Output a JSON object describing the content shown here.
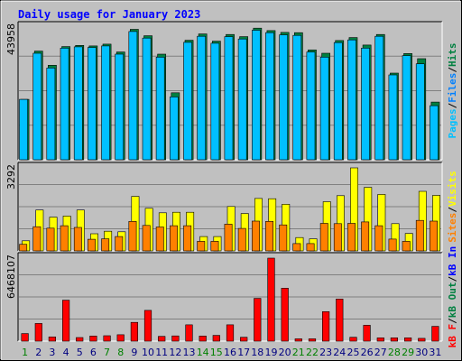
{
  "chart_data": {
    "type": "bar",
    "title": "Daily usage for January 2023",
    "categories": [
      "1",
      "2",
      "3",
      "4",
      "5",
      "6",
      "7",
      "8",
      "9",
      "10",
      "11",
      "12",
      "13",
      "14",
      "15",
      "16",
      "17",
      "18",
      "19",
      "20",
      "21",
      "22",
      "23",
      "24",
      "25",
      "26",
      "27",
      "28",
      "29",
      "30",
      "31"
    ],
    "weekend_days": [
      "1",
      "7",
      "8",
      "14",
      "15",
      "21",
      "22",
      "28",
      "29"
    ],
    "panels": [
      {
        "name": "hits-files-pages",
        "ymax_label": "43958",
        "ymax": 43958,
        "grid": true,
        "series": [
          {
            "name": "Hits",
            "color": "#008040",
            "values": [
              20000,
              36000,
              31300,
              37500,
              37900,
              37700,
              38300,
              35700,
              43200,
              41100,
              35000,
              22200,
              39600,
              41700,
              39300,
              41500,
              40800,
              43600,
              42800,
              42200,
              42100,
              36400,
              35300,
              39500,
              40500,
              38000,
              41500,
              28700,
              35200,
              33500,
              19100
            ]
          },
          {
            "name": "Files",
            "color": "#00C0FF",
            "values": [
              20000,
              35300,
              30400,
              37000,
              37400,
              37200,
              37700,
              35000,
              42500,
              40300,
              34000,
              20800,
              38900,
              40900,
              38600,
              40800,
              40000,
              42900,
              42100,
              41400,
              41200,
              35700,
              34000,
              38800,
              39700,
              37000,
              40900,
              28100,
              34500,
              31800,
              17900
            ]
          },
          {
            "name": "Pages",
            "color": "#00C0FF",
            "values": []
          }
        ]
      },
      {
        "name": "visits-sites",
        "ymax_label": "3292",
        "ymax": 3292,
        "grid": true,
        "series": [
          {
            "name": "Visits",
            "color": "#FFFF00",
            "values": [
              400,
              1620,
              1340,
              1380,
              1620,
              680,
              780,
              760,
              2160,
              1690,
              1510,
              1530,
              1530,
              570,
              570,
              1760,
              1480,
              2080,
              2070,
              1850,
              530,
              480,
              1950,
              2190,
              3292,
              2520,
              2240,
              1080,
              690,
              2360,
              2200
            ]
          },
          {
            "name": "Sites",
            "color": "#FF8000",
            "values": [
              260,
              960,
              900,
              1000,
              930,
              460,
              480,
              570,
              1170,
              1010,
              950,
              1000,
              1000,
              380,
              380,
              1060,
              890,
              1180,
              1170,
              1030,
              290,
              290,
              1090,
              1080,
              1090,
              1150,
              1000,
              470,
              380,
              1210,
              1180
            ]
          }
        ]
      },
      {
        "name": "kb",
        "ymax_label": "6468107",
        "ymax": 6468107,
        "grid": true,
        "series": [
          {
            "name": "KB In",
            "color": "#0000FF",
            "values": []
          },
          {
            "name": "KB Out",
            "color": "#008040",
            "values": []
          },
          {
            "name": "KB F",
            "color": "#FF0000",
            "values": [
              590000,
              1380000,
              330000,
              3190000,
              280000,
              400000,
              420000,
              500000,
              1460000,
              2400000,
              370000,
              410000,
              1270000,
              400000,
              450000,
              1270000,
              300000,
              3330000,
              6468107,
              4130000,
              180000,
              180000,
              2300000,
              3280000,
              300000,
              1240000,
              260000,
              260000,
              260000,
              220000,
              1150000
            ]
          }
        ]
      }
    ],
    "side_labels": [
      [
        {
          "text": "Pages",
          "color": "#00C0FF"
        },
        {
          "text": "/",
          "color": "#000000"
        },
        {
          "text": "Files",
          "color": "#0080FF"
        },
        {
          "text": "/",
          "color": "#000000"
        },
        {
          "text": "Hits",
          "color": "#008040"
        }
      ],
      [
        {
          "text": "Sites",
          "color": "#FF8000"
        },
        {
          "text": "/",
          "color": "#000000"
        },
        {
          "text": "Visits",
          "color": "#FFFF00"
        }
      ],
      [
        {
          "text": "kB F",
          "color": "#FF0000"
        },
        {
          "text": "/",
          "color": "#000000"
        },
        {
          "text": "kB Out",
          "color": "#008040"
        },
        {
          "text": "/",
          "color": "#000000"
        },
        {
          "text": "kB In",
          "color": "#0000FF"
        }
      ]
    ],
    "colors": {
      "background": "#C0C0C0",
      "panel_bg": "#C0C0C0",
      "title": "#0000FF",
      "weekday_tick": "#000080",
      "weekend_tick": "#008000"
    }
  }
}
